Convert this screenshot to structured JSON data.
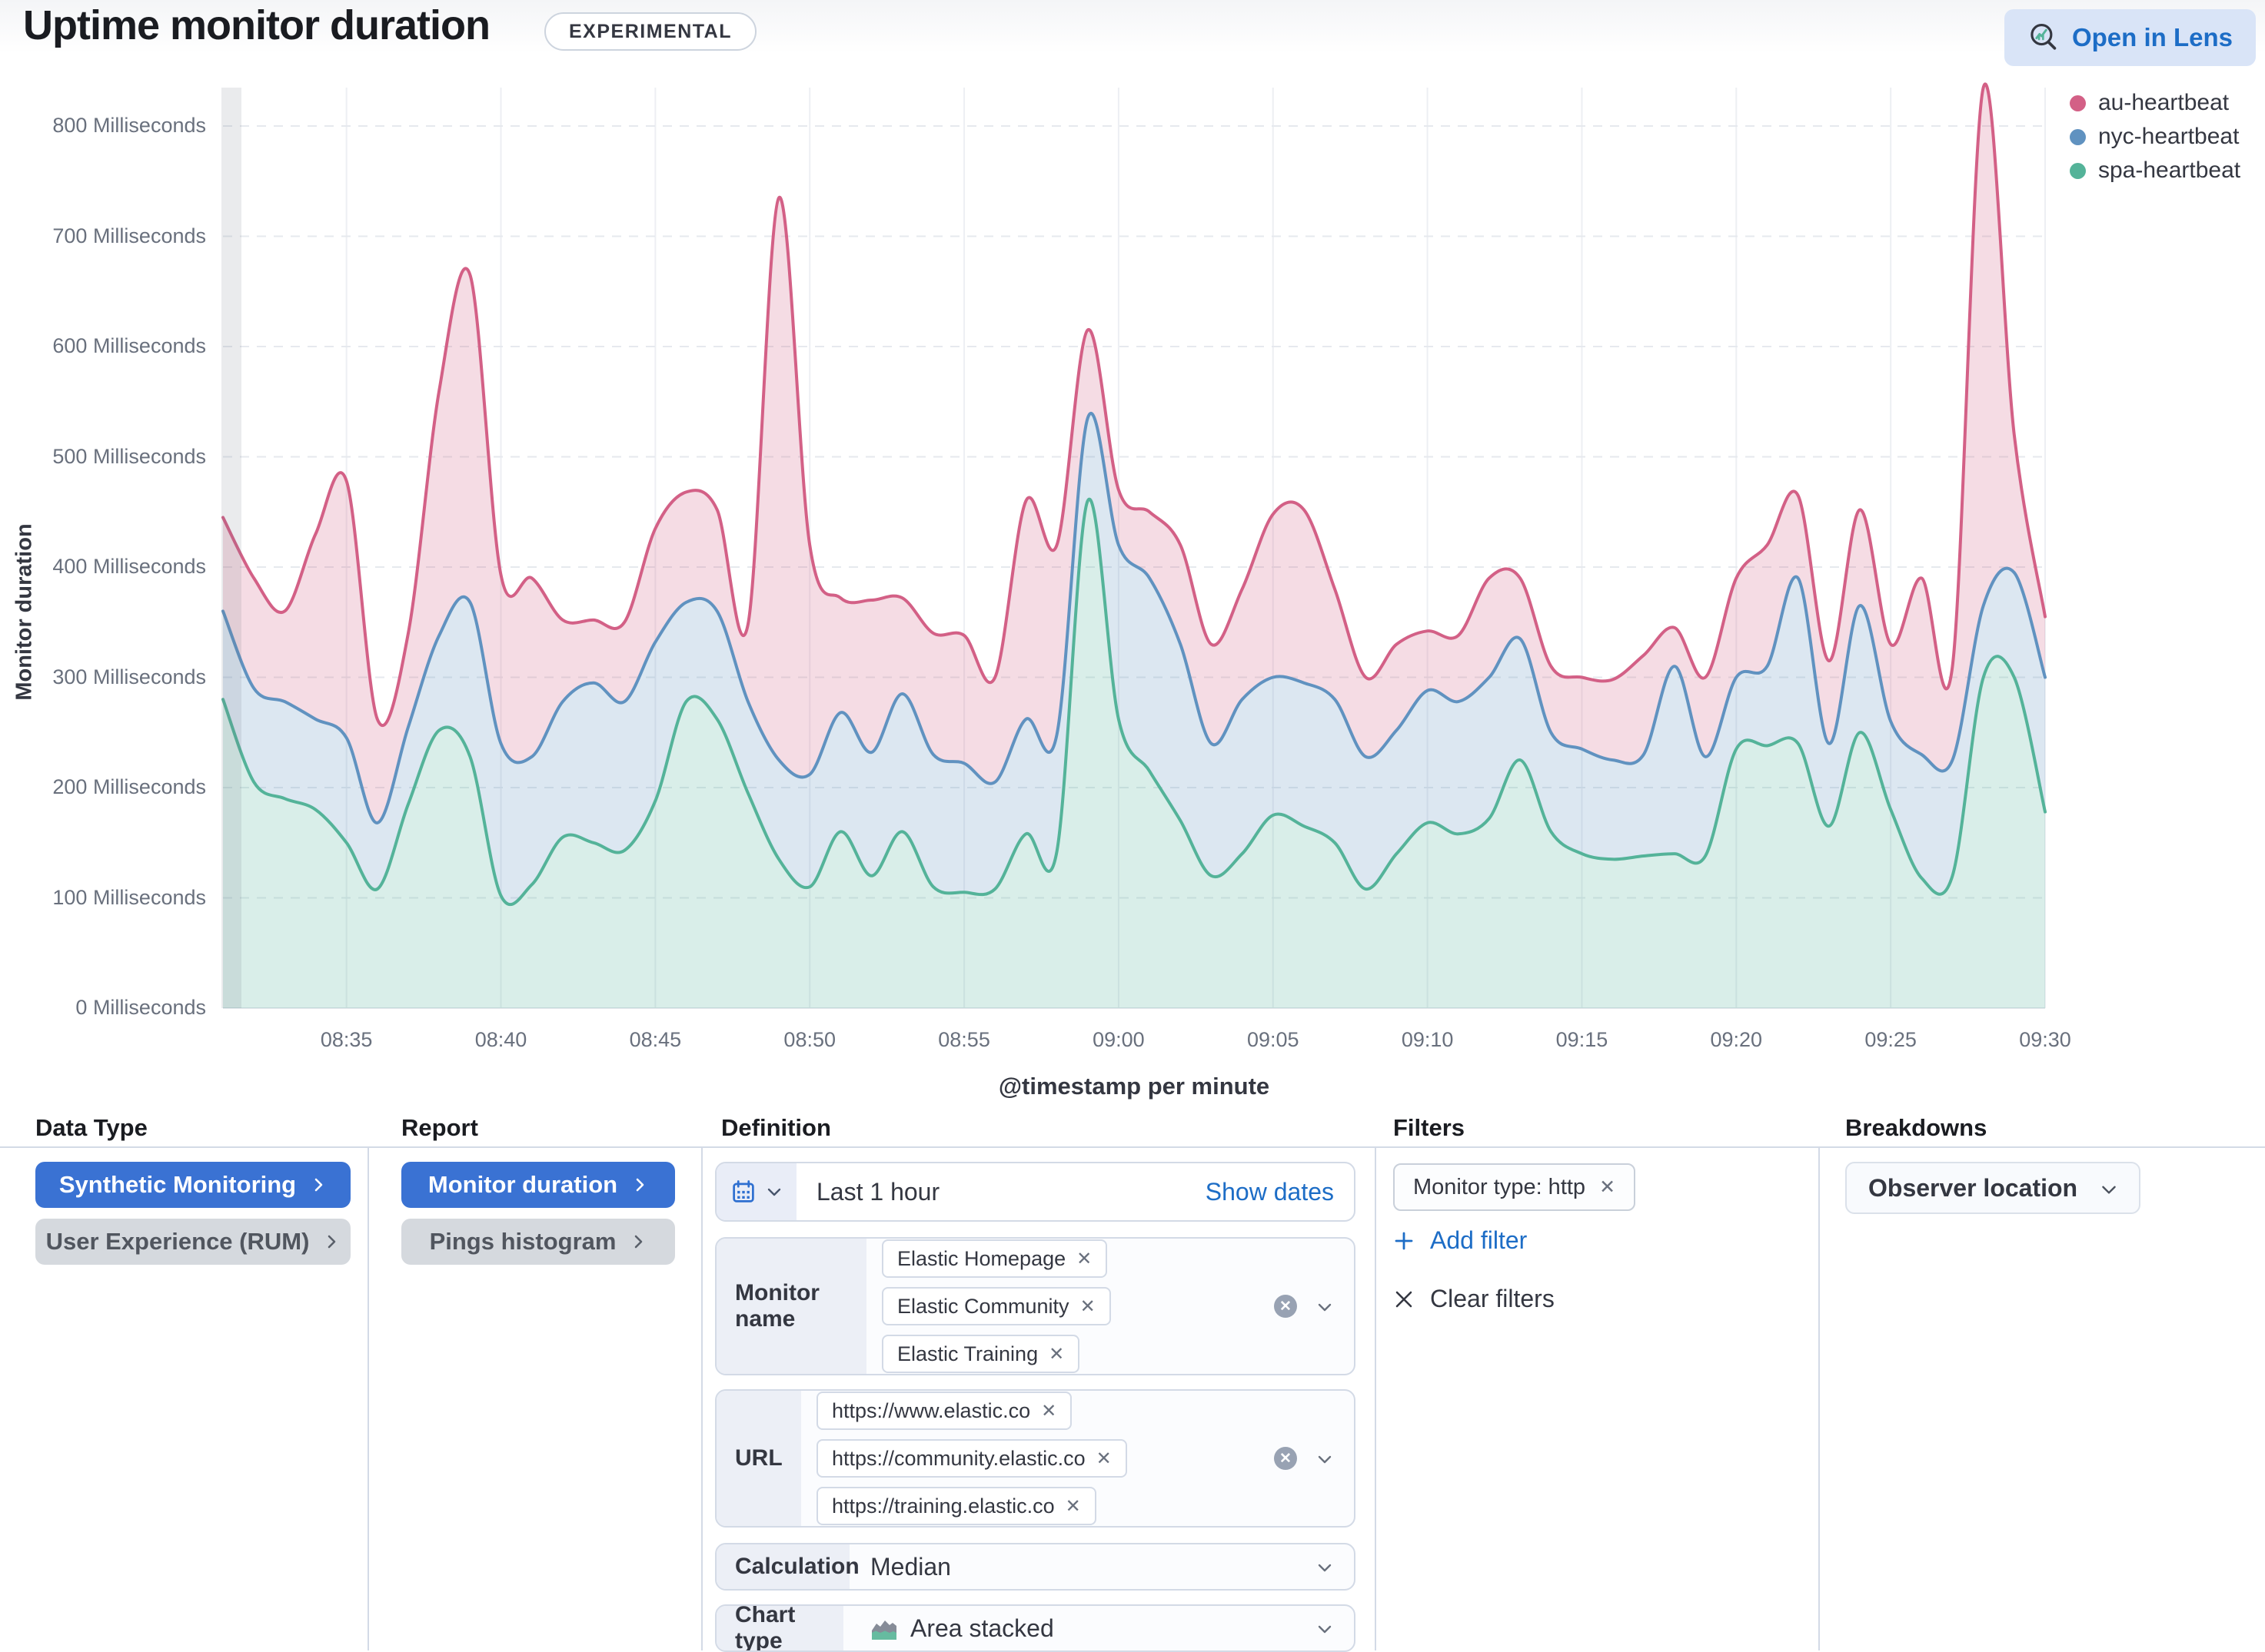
{
  "header": {
    "title": "Uptime monitor duration",
    "badge": "EXPERIMENTAL",
    "open_in_lens": "Open in Lens"
  },
  "colors": {
    "accent_blue": "#1d6dc6",
    "selected_button_blue": "#3a72d3",
    "border": "#d3dae6",
    "text": "#343741",
    "text_subdued": "#69707d"
  },
  "chart_data": {
    "type": "area",
    "stacked": true,
    "xlabel": "@timestamp per minute",
    "ylabel": "Monitor duration",
    "y_unit": "Milliseconds",
    "ylim": [
      0,
      800
    ],
    "grid": true,
    "legend_position": "top-right",
    "x": [
      "08:31",
      "08:32",
      "08:33",
      "08:34",
      "08:35",
      "08:36",
      "08:37",
      "08:38",
      "08:39",
      "08:40",
      "08:41",
      "08:42",
      "08:43",
      "08:44",
      "08:45",
      "08:46",
      "08:47",
      "08:48",
      "08:49",
      "08:50",
      "08:51",
      "08:52",
      "08:53",
      "08:54",
      "08:55",
      "08:56",
      "08:57",
      "08:58",
      "08:59",
      "09:00",
      "09:01",
      "09:02",
      "09:03",
      "09:04",
      "09:05",
      "09:06",
      "09:07",
      "09:08",
      "09:09",
      "09:10",
      "09:11",
      "09:12",
      "09:13",
      "09:14",
      "09:15",
      "09:16",
      "09:17",
      "09:18",
      "09:19",
      "09:20",
      "09:21",
      "09:22",
      "09:23",
      "09:24",
      "09:25",
      "09:26",
      "09:27",
      "09:28",
      "09:29",
      "09:30"
    ],
    "x_ticks": [
      "08:35",
      "08:40",
      "08:45",
      "08:50",
      "08:55",
      "09:00",
      "09:05",
      "09:10",
      "09:15",
      "09:20",
      "09:25",
      "09:30"
    ],
    "y_ticks": [
      "0 Milliseconds",
      "100 Milliseconds",
      "200 Milliseconds",
      "300 Milliseconds",
      "400 Milliseconds",
      "500 Milliseconds",
      "600 Milliseconds",
      "700 Milliseconds",
      "800 Milliseconds"
    ],
    "series": [
      {
        "name": "spa-heartbeat",
        "color": "#54b399",
        "values": [
          280,
          205,
          190,
          180,
          150,
          108,
          185,
          252,
          228,
          102,
          112,
          155,
          150,
          143,
          188,
          278,
          262,
          195,
          135,
          110,
          160,
          120,
          160,
          110,
          105,
          108,
          158,
          142,
          460,
          262,
          215,
          170,
          120,
          140,
          175,
          165,
          150,
          108,
          140,
          168,
          158,
          172,
          225,
          160,
          140,
          135,
          138,
          140,
          138,
          235,
          238,
          240,
          165,
          250,
          180,
          118,
          120,
          300,
          300,
          178
        ]
      },
      {
        "name": "nyc-heartbeat",
        "color": "#6092c0",
        "values": [
          80,
          85,
          88,
          82,
          95,
          60,
          70,
          86,
          140,
          138,
          116,
          123,
          145,
          135,
          144,
          90,
          98,
          83,
          90,
          102,
          108,
          112,
          125,
          120,
          117,
          97,
          104,
          106,
          75,
          158,
          175,
          160,
          120,
          140,
          125,
          130,
          130,
          120,
          112,
          120,
          120,
          128,
          110,
          90,
          95,
          90,
          92,
          170,
          90,
          65,
          72,
          150,
          75,
          115,
          80,
          112,
          105,
          65,
          95,
          122
        ]
      },
      {
        "name": "au-heartbeat",
        "color": "#d36086",
        "values": [
          85,
          100,
          82,
          168,
          233,
          94,
          85,
          222,
          297,
          153,
          162,
          74,
          57,
          72,
          103,
          100,
          92,
          70,
          510,
          208,
          104,
          138,
          87,
          110,
          116,
          95,
          198,
          172,
          80,
          50,
          60,
          90,
          90,
          100,
          148,
          157,
          100,
          72,
          78,
          54,
          60,
          90,
          55,
          60,
          65,
          73,
          90,
          35,
          72,
          90,
          110,
          75,
          75,
          87,
          70,
          160,
          85,
          470,
          125,
          55
        ]
      }
    ]
  },
  "panels": {
    "data_type": {
      "header": "Data Type",
      "synthetic": "Synthetic Monitoring",
      "rum": "User Experience (RUM)"
    },
    "report": {
      "header": "Report",
      "monitor_duration": "Monitor duration",
      "pings_histogram": "Pings histogram"
    },
    "definition": {
      "header": "Definition",
      "time_range": {
        "label": "Last 1 hour",
        "show_dates": "Show dates"
      },
      "monitor_name": {
        "label": "Monitor name",
        "chips": [
          "Elastic Homepage",
          "Elastic Community",
          "Elastic Training"
        ]
      },
      "url": {
        "label": "URL",
        "chips": [
          "https://www.elastic.co",
          "https://community.elastic.co",
          "https://training.elastic.co"
        ]
      },
      "calculation": {
        "label": "Calculation",
        "value": "Median"
      },
      "chart_type": {
        "label": "Chart type",
        "value": "Area stacked"
      }
    },
    "filters": {
      "header": "Filters",
      "chips": [
        "Monitor type: http"
      ],
      "add_filter": "Add filter",
      "clear_filters": "Clear filters"
    },
    "breakdowns": {
      "header": "Breakdowns",
      "selected": "Observer location"
    }
  }
}
